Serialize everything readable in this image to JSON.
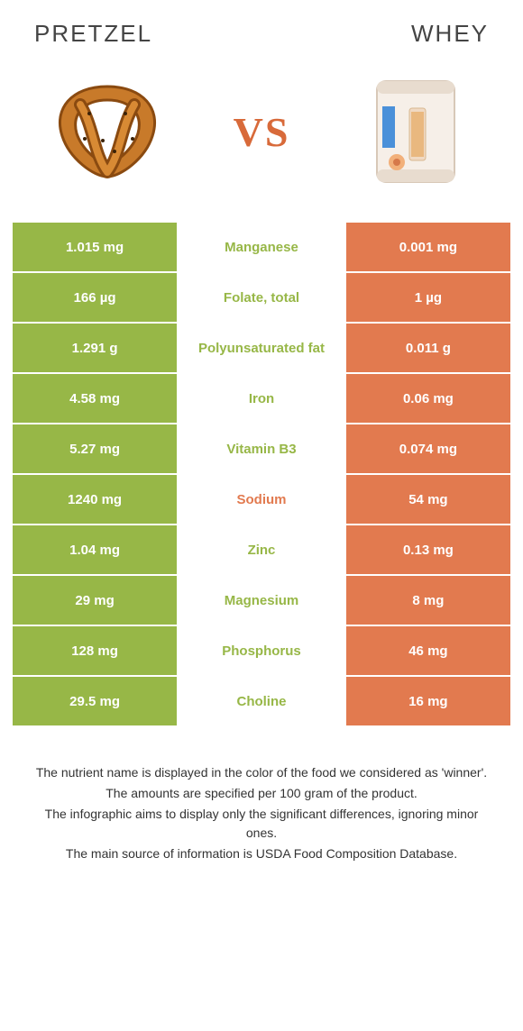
{
  "header": {
    "left_title": "Pretzel",
    "right_title": "Whey",
    "vs_label": "VS"
  },
  "colors": {
    "left_bg": "#97b747",
    "right_bg": "#e27a4f",
    "left_winner_text": "#97b747",
    "right_winner_text": "#e27a4f",
    "row_border": "#ffffff",
    "page_bg": "#ffffff",
    "title_color": "#444444",
    "vs_color": "#d86a3a"
  },
  "rows": [
    {
      "nutrient": "Manganese",
      "left": "1.015 mg",
      "right": "0.001 mg",
      "winner": "left"
    },
    {
      "nutrient": "Folate, total",
      "left": "166 µg",
      "right": "1 µg",
      "winner": "left"
    },
    {
      "nutrient": "Polyunsaturated fat",
      "left": "1.291 g",
      "right": "0.011 g",
      "winner": "left"
    },
    {
      "nutrient": "Iron",
      "left": "4.58 mg",
      "right": "0.06 mg",
      "winner": "left"
    },
    {
      "nutrient": "Vitamin B3",
      "left": "5.27 mg",
      "right": "0.074 mg",
      "winner": "left"
    },
    {
      "nutrient": "Sodium",
      "left": "1240 mg",
      "right": "54 mg",
      "winner": "right"
    },
    {
      "nutrient": "Zinc",
      "left": "1.04 mg",
      "right": "0.13 mg",
      "winner": "left"
    },
    {
      "nutrient": "Magnesium",
      "left": "29 mg",
      "right": "8 mg",
      "winner": "left"
    },
    {
      "nutrient": "Phosphorus",
      "left": "128 mg",
      "right": "46 mg",
      "winner": "left"
    },
    {
      "nutrient": "Choline",
      "left": "29.5 mg",
      "right": "16 mg",
      "winner": "left"
    }
  ],
  "footnotes": [
    "The nutrient name is displayed in the color of the food we considered as 'winner'.",
    "The amounts are specified per 100 gram of the product.",
    "The infographic aims to display only the significant differences, ignoring minor ones.",
    "The main source of information is USDA Food Composition Database."
  ]
}
